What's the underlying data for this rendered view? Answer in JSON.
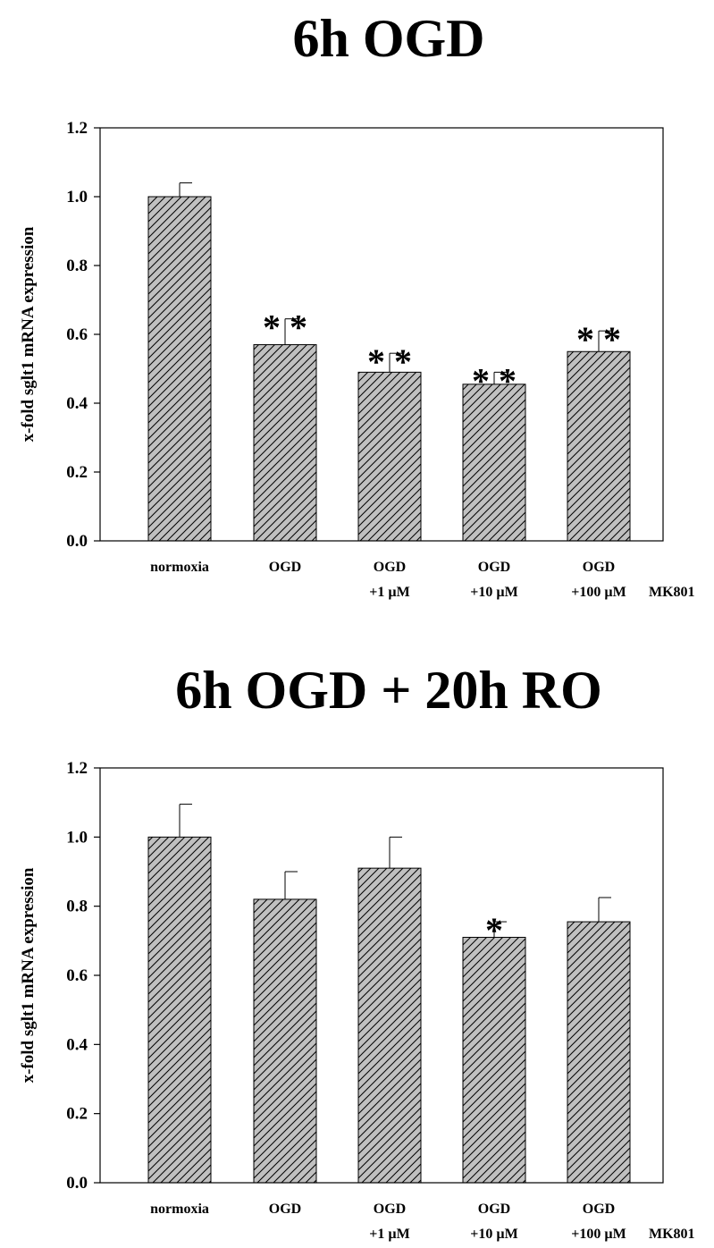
{
  "chart_data": [
    {
      "type": "bar",
      "title": "6h OGD",
      "ylabel": "x-fold sglt1 mRNA expression",
      "xlabel": "",
      "categories": [
        [
          "normoxia"
        ],
        [
          "OGD"
        ],
        [
          "OGD",
          "+1 µM"
        ],
        [
          "OGD",
          "+10 µM"
        ],
        [
          "OGD",
          "+100 µM"
        ]
      ],
      "category_suffix": "MK801",
      "values": [
        1.0,
        0.57,
        0.49,
        0.455,
        0.55
      ],
      "errors": [
        0.04,
        0.075,
        0.055,
        0.035,
        0.06
      ],
      "significance": [
        "",
        "**",
        "**",
        "**",
        "**"
      ],
      "ylim": [
        0,
        1.2
      ],
      "yticks": [
        "0.0",
        "0.2",
        "0.4",
        "0.6",
        "0.8",
        "1.0",
        "1.2"
      ],
      "bar_fill": "#c0c0c0",
      "hatch": "diagonal",
      "grid": false,
      "legend": "none"
    },
    {
      "type": "bar",
      "title": "6h OGD + 20h RO",
      "ylabel": "x-fold sglt1 mRNA expression",
      "xlabel": "",
      "categories": [
        [
          "normoxia"
        ],
        [
          "OGD"
        ],
        [
          "OGD",
          "+1 µM"
        ],
        [
          "OGD",
          "+10 µM"
        ],
        [
          "OGD",
          "+100 µM"
        ]
      ],
      "category_suffix": "MK801",
      "values": [
        1.0,
        0.82,
        0.91,
        0.71,
        0.755
      ],
      "errors": [
        0.095,
        0.08,
        0.09,
        0.045,
        0.07
      ],
      "significance": [
        "",
        "",
        "",
        "*",
        ""
      ],
      "ylim": [
        0,
        1.2
      ],
      "yticks": [
        "0.0",
        "0.2",
        "0.4",
        "0.6",
        "0.8",
        "1.0",
        "1.2"
      ],
      "bar_fill": "#c0c0c0",
      "hatch": "diagonal",
      "grid": false,
      "legend": "none"
    }
  ]
}
